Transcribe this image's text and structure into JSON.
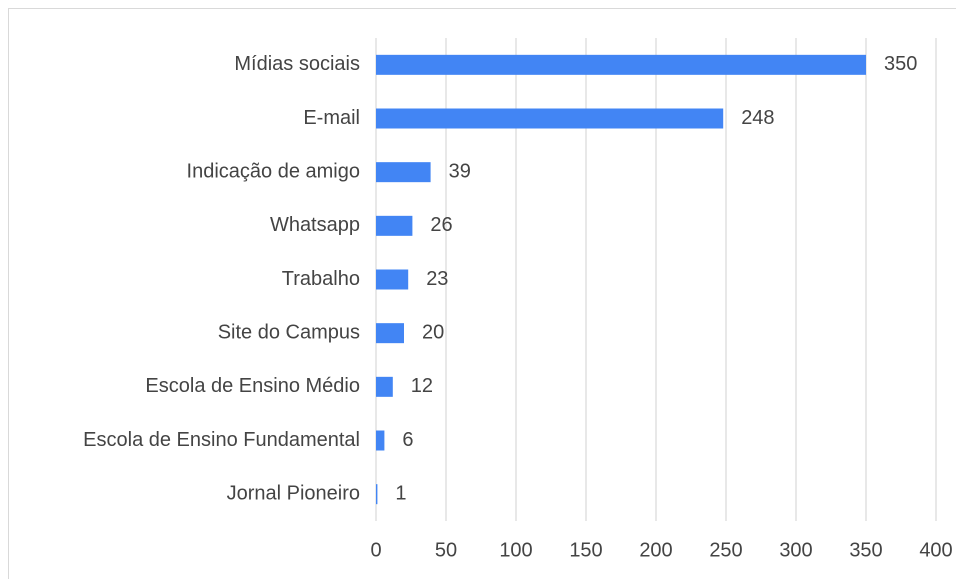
{
  "chart_data": {
    "type": "hbar",
    "categories": [
      "Mídias sociais",
      "E-mail",
      "Indicação de amigo",
      "Whatsapp",
      "Trabalho",
      "Site do Campus",
      "Escola de Ensino Médio",
      "Escola de Ensino Fundamental",
      "Jornal Pioneiro"
    ],
    "values": [
      350,
      248,
      39,
      26,
      23,
      20,
      12,
      6,
      1
    ],
    "color": "#4285f4",
    "xlim": [
      0,
      400
    ],
    "xticks": [
      0,
      50,
      100,
      150,
      200,
      250,
      300,
      350,
      400
    ],
    "grid": true
  }
}
